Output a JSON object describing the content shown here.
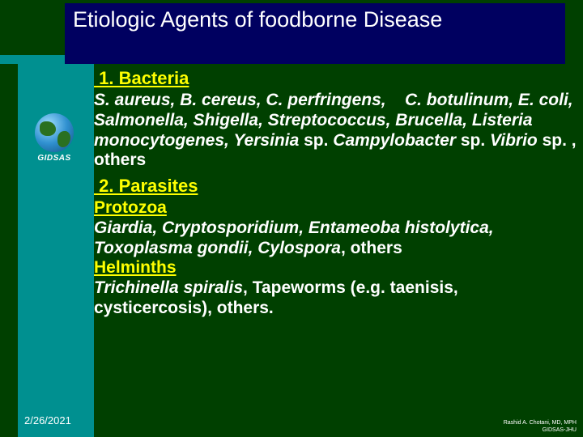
{
  "colors": {
    "background": "#004000",
    "teal": "#009090",
    "title_bg": "#000060",
    "title_text": "#ffffff",
    "heading": "#ffff00",
    "body_text": "#ffffff"
  },
  "title": "Etiologic Agents of foodborne Disease",
  "logo_label": "GIDSAS",
  "sections": [
    {
      "heading": " 1. Bacteria",
      "body_html": "S. aureus, B. cereus, C. perfringens, &nbsp;&nbsp;&nbsp;C. botulinum, E. coli, Salmonella, Shigella, Streptococcus, Brucella, Listeria monocytogenes, Yersinia <span class=\"plain\">sp.</span> Campylobacter <span class=\"plain\">sp.</span> Vibrio <span class=\"plain\">sp. , others</span>"
    },
    {
      "heading": " 2. Parasites",
      "body_html": "<span class=\"sub-heading\">Protozoa</span><br>Giardia, Cryptosporidium, Entameoba histolytica, Toxoplasma gondii, Cylospora<span class=\"plain\">, others</span><br><span class=\"sub-heading\">Helminths</span><br>Trichinella spiralis<span class=\"plain\">, Tapeworms (e.g. taenisis, cysticercosis), others.</span>"
    }
  ],
  "date": "2/26/2021",
  "credit_line1": "Rashid A. Chotani, MD, MPH",
  "credit_line2": "GIDSAS-JHU"
}
